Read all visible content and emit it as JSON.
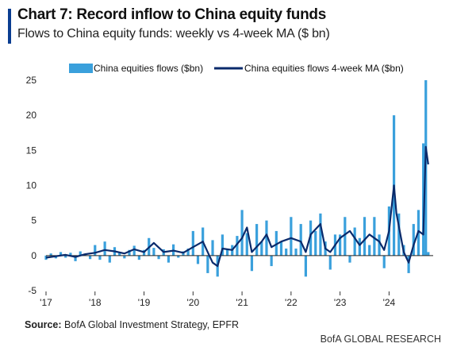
{
  "title": "Chart 7: Record inflow to China equity funds",
  "subtitle": "Flows to China equity funds: weekly vs 4-week MA ($ bn)",
  "source_label": "Source:",
  "source_text": "BofA Global Investment Strategy, EPFR",
  "brand": "BofA GLOBAL RESEARCH",
  "colors": {
    "bars": "#3aa0dc",
    "line": "#0a2a6b",
    "title_accent": "#0a3d91"
  },
  "chart_data": {
    "type": "bar",
    "legend_position": "top",
    "grid": false,
    "xlabel": "",
    "ylabel": "",
    "ylim": [
      -5,
      25
    ],
    "yticks": [
      -5,
      0,
      5,
      10,
      15,
      20,
      25
    ],
    "x_tick_labels": [
      "'17",
      "'18",
      "'19",
      "'20",
      "'21",
      "'22",
      "'23",
      "'24"
    ],
    "x_tick_years": [
      2017,
      2018,
      2019,
      2020,
      2021,
      2022,
      2023,
      2024
    ],
    "xlim": [
      2017.0,
      2024.9
    ],
    "series": [
      {
        "name": "China equities flows ($bn)",
        "type": "bar",
        "date": [
          2017.0,
          2017.1,
          2017.2,
          2017.3,
          2017.4,
          2017.5,
          2017.6,
          2017.7,
          2017.8,
          2017.9,
          2018.0,
          2018.1,
          2018.2,
          2018.3,
          2018.4,
          2018.5,
          2018.6,
          2018.7,
          2018.8,
          2018.9,
          2019.0,
          2019.1,
          2019.2,
          2019.3,
          2019.4,
          2019.5,
          2019.6,
          2019.7,
          2019.8,
          2019.9,
          2020.0,
          2020.1,
          2020.2,
          2020.3,
          2020.4,
          2020.5,
          2020.6,
          2020.7,
          2020.8,
          2020.9,
          2021.0,
          2021.1,
          2021.2,
          2021.3,
          2021.4,
          2021.5,
          2021.6,
          2021.7,
          2021.8,
          2021.9,
          2022.0,
          2022.1,
          2022.2,
          2022.3,
          2022.4,
          2022.5,
          2022.6,
          2022.7,
          2022.8,
          2022.9,
          2023.0,
          2023.1,
          2023.2,
          2023.3,
          2023.4,
          2023.5,
          2023.6,
          2023.7,
          2023.8,
          2023.9,
          2024.0,
          2024.1,
          2024.2,
          2024.3,
          2024.4,
          2024.5,
          2024.6,
          2024.7,
          2024.75,
          2024.8
        ],
        "values": [
          -0.6,
          0.3,
          -0.4,
          0.5,
          -0.3,
          0.4,
          -0.8,
          0.6,
          0.2,
          -0.5,
          1.5,
          -0.6,
          2.0,
          -1.0,
          1.2,
          0.5,
          -0.4,
          0.8,
          1.4,
          -0.6,
          0.8,
          2.5,
          1.1,
          -0.5,
          0.9,
          -1.0,
          1.6,
          -0.3,
          0.6,
          1.0,
          3.5,
          -1.2,
          4.0,
          -2.5,
          2.2,
          -3.0,
          3.0,
          1.0,
          1.5,
          2.8,
          6.5,
          3.2,
          -2.2,
          4.5,
          2.0,
          5.0,
          -1.5,
          3.5,
          2.0,
          1.0,
          5.5,
          1.0,
          4.5,
          -3.0,
          5.0,
          3.5,
          6.0,
          2.0,
          -2.0,
          3.0,
          3.0,
          5.5,
          -1.0,
          4.0,
          2.5,
          5.5,
          1.5,
          5.5,
          3.0,
          -1.8,
          7.0,
          20.0,
          6.0,
          1.5,
          -2.5,
          4.5,
          6.5,
          16.0,
          25.0,
          0.5
        ]
      },
      {
        "name": "China equities flows 4-week MA ($bn)",
        "type": "line",
        "date": [
          2017.0,
          2017.2,
          2017.4,
          2017.6,
          2017.8,
          2018.0,
          2018.2,
          2018.4,
          2018.6,
          2018.8,
          2019.0,
          2019.2,
          2019.4,
          2019.6,
          2019.8,
          2020.0,
          2020.2,
          2020.3,
          2020.4,
          2020.5,
          2020.6,
          2020.8,
          2021.0,
          2021.1,
          2021.2,
          2021.4,
          2021.5,
          2021.6,
          2021.8,
          2022.0,
          2022.2,
          2022.3,
          2022.4,
          2022.6,
          2022.7,
          2022.8,
          2023.0,
          2023.2,
          2023.4,
          2023.6,
          2023.8,
          2023.9,
          2024.0,
          2024.1,
          2024.15,
          2024.3,
          2024.4,
          2024.5,
          2024.6,
          2024.7,
          2024.75,
          2024.8
        ],
        "values": [
          -0.3,
          -0.1,
          0.1,
          -0.2,
          0.2,
          0.4,
          0.8,
          0.6,
          0.3,
          0.9,
          0.5,
          1.8,
          0.5,
          0.7,
          0.4,
          1.2,
          2.0,
          0.5,
          -1.0,
          -1.5,
          1.0,
          0.8,
          2.5,
          4.0,
          0.5,
          2.0,
          3.0,
          1.2,
          2.0,
          2.5,
          2.0,
          0.5,
          3.0,
          4.5,
          1.0,
          0.5,
          2.5,
          3.5,
          1.5,
          3.0,
          2.0,
          0.8,
          3.5,
          10.0,
          6.0,
          0.5,
          -1.0,
          1.5,
          3.5,
          3.0,
          15.5,
          13.0
        ]
      }
    ]
  }
}
